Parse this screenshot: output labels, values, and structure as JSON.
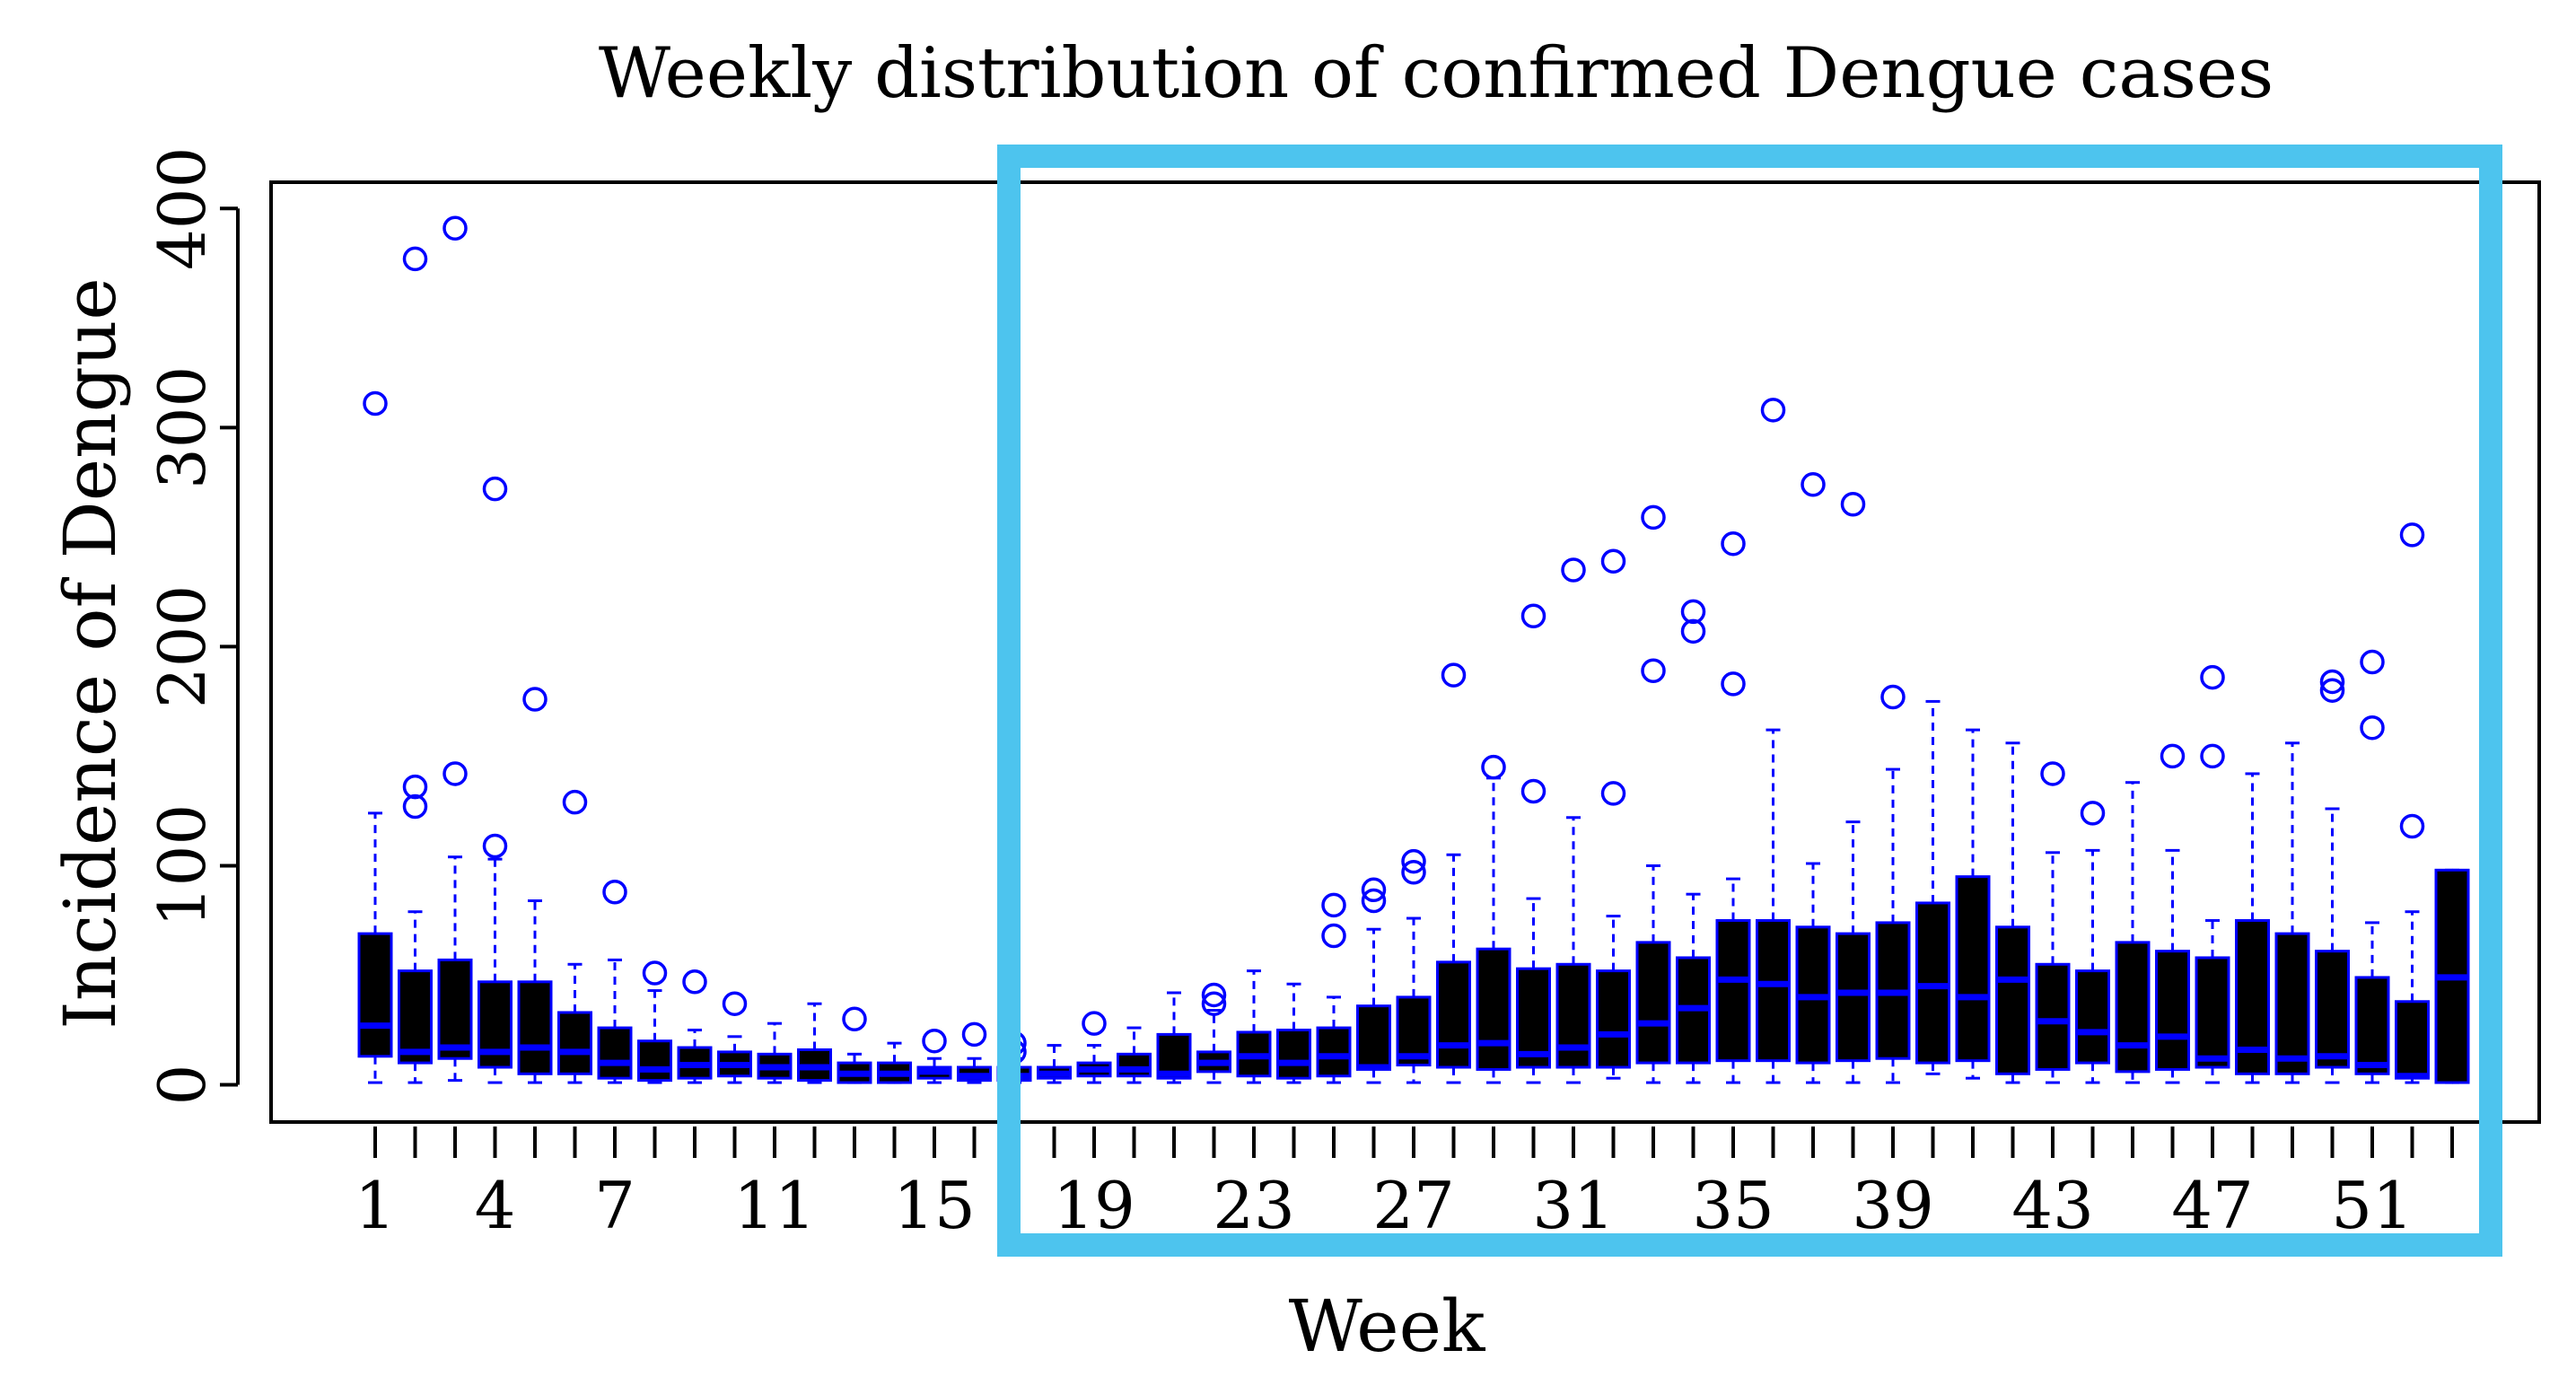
{
  "chart_data": {
    "type": "boxplot",
    "title": "Weekly distribution of confirmed Dengue cases",
    "xlabel": "Week",
    "ylabel": "Incidence of Dengue",
    "ylim": [
      -17,
      412
    ],
    "yticks": [
      0,
      100,
      200,
      300,
      400
    ],
    "x_tick_labels": [
      1,
      4,
      7,
      11,
      15,
      19,
      23,
      27,
      31,
      35,
      39,
      43,
      47,
      51
    ],
    "weeks": 53,
    "highlight_weeks": [
      17,
      53
    ],
    "colors": {
      "box_fill": "#000000",
      "box_border": "#0000ff",
      "highlight": "#4dc4ee",
      "axis": "#000000"
    },
    "boxes": [
      {
        "week": 1,
        "lw": 1,
        "q1": 13,
        "med": 27,
        "q3": 69,
        "uw": 124,
        "outliers": [
          311
        ]
      },
      {
        "week": 2,
        "lw": 1,
        "q1": 10,
        "med": 15,
        "q3": 52,
        "uw": 79,
        "outliers": [
          127,
          136,
          377
        ]
      },
      {
        "week": 3,
        "lw": 2,
        "q1": 12,
        "med": 17,
        "q3": 57,
        "uw": 104,
        "outliers": [
          142,
          391
        ]
      },
      {
        "week": 4,
        "lw": 1,
        "q1": 8,
        "med": 15,
        "q3": 47,
        "uw": 103,
        "outliers": [
          109,
          272
        ]
      },
      {
        "week": 5,
        "lw": 1,
        "q1": 5,
        "med": 17,
        "q3": 47,
        "uw": 84,
        "outliers": [
          176
        ]
      },
      {
        "week": 6,
        "lw": 1,
        "q1": 5,
        "med": 15,
        "q3": 33,
        "uw": 55,
        "outliers": [
          129
        ]
      },
      {
        "week": 7,
        "lw": 1,
        "q1": 3,
        "med": 10,
        "q3": 26,
        "uw": 57,
        "outliers": [
          88
        ]
      },
      {
        "week": 8,
        "lw": 1,
        "q1": 2,
        "med": 7,
        "q3": 20,
        "uw": 43,
        "outliers": [
          51
        ]
      },
      {
        "week": 9,
        "lw": 1,
        "q1": 3,
        "med": 9,
        "q3": 17,
        "uw": 25,
        "outliers": [
          47
        ]
      },
      {
        "week": 10,
        "lw": 1,
        "q1": 4,
        "med": 9,
        "q3": 15,
        "uw": 22,
        "outliers": [
          37
        ]
      },
      {
        "week": 11,
        "lw": 1,
        "q1": 3,
        "med": 8,
        "q3": 14,
        "uw": 28,
        "outliers": []
      },
      {
        "week": 12,
        "lw": 1,
        "q1": 2,
        "med": 8,
        "q3": 16,
        "uw": 37,
        "outliers": []
      },
      {
        "week": 13,
        "lw": 1,
        "q1": 1,
        "med": 5,
        "q3": 10,
        "uw": 14,
        "outliers": [
          30
        ]
      },
      {
        "week": 14,
        "lw": 1,
        "q1": 1,
        "med": 5,
        "q3": 10,
        "uw": 19,
        "outliers": []
      },
      {
        "week": 15,
        "lw": 1,
        "q1": 3,
        "med": 6,
        "q3": 8,
        "uw": 12,
        "outliers": [
          20
        ]
      },
      {
        "week": 16,
        "lw": 1,
        "q1": 2,
        "med": 4,
        "q3": 8,
        "uw": 12,
        "outliers": [
          23
        ]
      },
      {
        "week": 17,
        "lw": 1,
        "q1": 2,
        "med": 4,
        "q3": 8,
        "uw": 12,
        "outliers": [
          15,
          19
        ]
      },
      {
        "week": 18,
        "lw": 1,
        "q1": 3,
        "med": 5,
        "q3": 8,
        "uw": 18,
        "outliers": []
      },
      {
        "week": 19,
        "lw": 1,
        "q1": 4,
        "med": 7,
        "q3": 10,
        "uw": 18,
        "outliers": [
          28
        ]
      },
      {
        "week": 20,
        "lw": 1,
        "q1": 4,
        "med": 7,
        "q3": 14,
        "uw": 26,
        "outliers": []
      },
      {
        "week": 21,
        "lw": 1,
        "q1": 3,
        "med": 5,
        "q3": 23,
        "uw": 42,
        "outliers": []
      },
      {
        "week": 22,
        "lw": 1,
        "q1": 6,
        "med": 10,
        "q3": 15,
        "uw": 34,
        "outliers": [
          37,
          41
        ]
      },
      {
        "week": 23,
        "lw": 1,
        "q1": 4,
        "med": 13,
        "q3": 24,
        "uw": 52,
        "outliers": []
      },
      {
        "week": 24,
        "lw": 1,
        "q1": 3,
        "med": 10,
        "q3": 25,
        "uw": 46,
        "outliers": []
      },
      {
        "week": 25,
        "lw": 1,
        "q1": 4,
        "med": 13,
        "q3": 26,
        "uw": 40,
        "outliers": [
          68,
          82
        ]
      },
      {
        "week": 26,
        "lw": 1,
        "q1": 7,
        "med": 8,
        "q3": 36,
        "uw": 71,
        "outliers": [
          84,
          89
        ]
      },
      {
        "week": 27,
        "lw": 1,
        "q1": 9,
        "med": 13,
        "q3": 40,
        "uw": 76,
        "outliers": [
          97,
          102
        ]
      },
      {
        "week": 28,
        "lw": 1,
        "q1": 8,
        "med": 18,
        "q3": 56,
        "uw": 105,
        "outliers": [
          187
        ]
      },
      {
        "week": 29,
        "lw": 1,
        "q1": 7,
        "med": 19,
        "q3": 62,
        "uw": 140,
        "outliers": [
          145
        ]
      },
      {
        "week": 30,
        "lw": 1,
        "q1": 8,
        "med": 14,
        "q3": 53,
        "uw": 85,
        "outliers": [
          134,
          214
        ]
      },
      {
        "week": 31,
        "lw": 1,
        "q1": 8,
        "med": 17,
        "q3": 55,
        "uw": 122,
        "outliers": [
          235
        ]
      },
      {
        "week": 32,
        "lw": 3,
        "q1": 8,
        "med": 23,
        "q3": 52,
        "uw": 77,
        "outliers": [
          133,
          239
        ]
      },
      {
        "week": 33,
        "lw": 1,
        "q1": 10,
        "med": 28,
        "q3": 65,
        "uw": 100,
        "outliers": [
          189,
          259
        ]
      },
      {
        "week": 34,
        "lw": 1,
        "q1": 10,
        "med": 35,
        "q3": 58,
        "uw": 87,
        "outliers": [
          207,
          216
        ]
      },
      {
        "week": 35,
        "lw": 1,
        "q1": 11,
        "med": 48,
        "q3": 75,
        "uw": 94,
        "outliers": [
          183,
          247
        ]
      },
      {
        "week": 36,
        "lw": 1,
        "q1": 11,
        "med": 46,
        "q3": 75,
        "uw": 162,
        "outliers": [
          308
        ]
      },
      {
        "week": 37,
        "lw": 1,
        "q1": 10,
        "med": 40,
        "q3": 72,
        "uw": 101,
        "outliers": [
          274
        ]
      },
      {
        "week": 38,
        "lw": 1,
        "q1": 11,
        "med": 42,
        "q3": 69,
        "uw": 120,
        "outliers": [
          265
        ]
      },
      {
        "week": 39,
        "lw": 1,
        "q1": 12,
        "med": 42,
        "q3": 74,
        "uw": 144,
        "outliers": [
          177
        ]
      },
      {
        "week": 40,
        "lw": 5,
        "q1": 10,
        "med": 45,
        "q3": 83,
        "uw": 175,
        "outliers": []
      },
      {
        "week": 41,
        "lw": 3,
        "q1": 11,
        "med": 40,
        "q3": 95,
        "uw": 162,
        "outliers": []
      },
      {
        "week": 42,
        "lw": 1,
        "q1": 5,
        "med": 48,
        "q3": 72,
        "uw": 156,
        "outliers": []
      },
      {
        "week": 43,
        "lw": 1,
        "q1": 7,
        "med": 29,
        "q3": 55,
        "uw": 106,
        "outliers": [
          142
        ]
      },
      {
        "week": 44,
        "lw": 1,
        "q1": 10,
        "med": 24,
        "q3": 52,
        "uw": 107,
        "outliers": [
          124
        ]
      },
      {
        "week": 45,
        "lw": 1,
        "q1": 6,
        "med": 18,
        "q3": 65,
        "uw": 138,
        "outliers": []
      },
      {
        "week": 46,
        "lw": 1,
        "q1": 7,
        "med": 22,
        "q3": 61,
        "uw": 107,
        "outliers": [
          150
        ]
      },
      {
        "week": 47,
        "lw": 1,
        "q1": 8,
        "med": 12,
        "q3": 58,
        "uw": 75,
        "outliers": [
          150,
          186
        ]
      },
      {
        "week": 48,
        "lw": 1,
        "q1": 5,
        "med": 16,
        "q3": 75,
        "uw": 142,
        "outliers": []
      },
      {
        "week": 49,
        "lw": 1,
        "q1": 5,
        "med": 12,
        "q3": 69,
        "uw": 156,
        "outliers": []
      },
      {
        "week": 50,
        "lw": 1,
        "q1": 8,
        "med": 13,
        "q3": 61,
        "uw": 126,
        "outliers": [
          180,
          184
        ]
      },
      {
        "week": 51,
        "lw": 1,
        "q1": 5,
        "med": 9,
        "q3": 49,
        "uw": 74,
        "outliers": [
          163,
          193
        ]
      },
      {
        "week": 52,
        "lw": 1,
        "q1": 3,
        "med": 4,
        "q3": 38,
        "uw": 79,
        "outliers": [
          118,
          251
        ]
      },
      {
        "week": 53,
        "lw": 1,
        "q1": 1,
        "med": 49,
        "q3": 98,
        "uw": 98,
        "outliers": []
      }
    ]
  }
}
